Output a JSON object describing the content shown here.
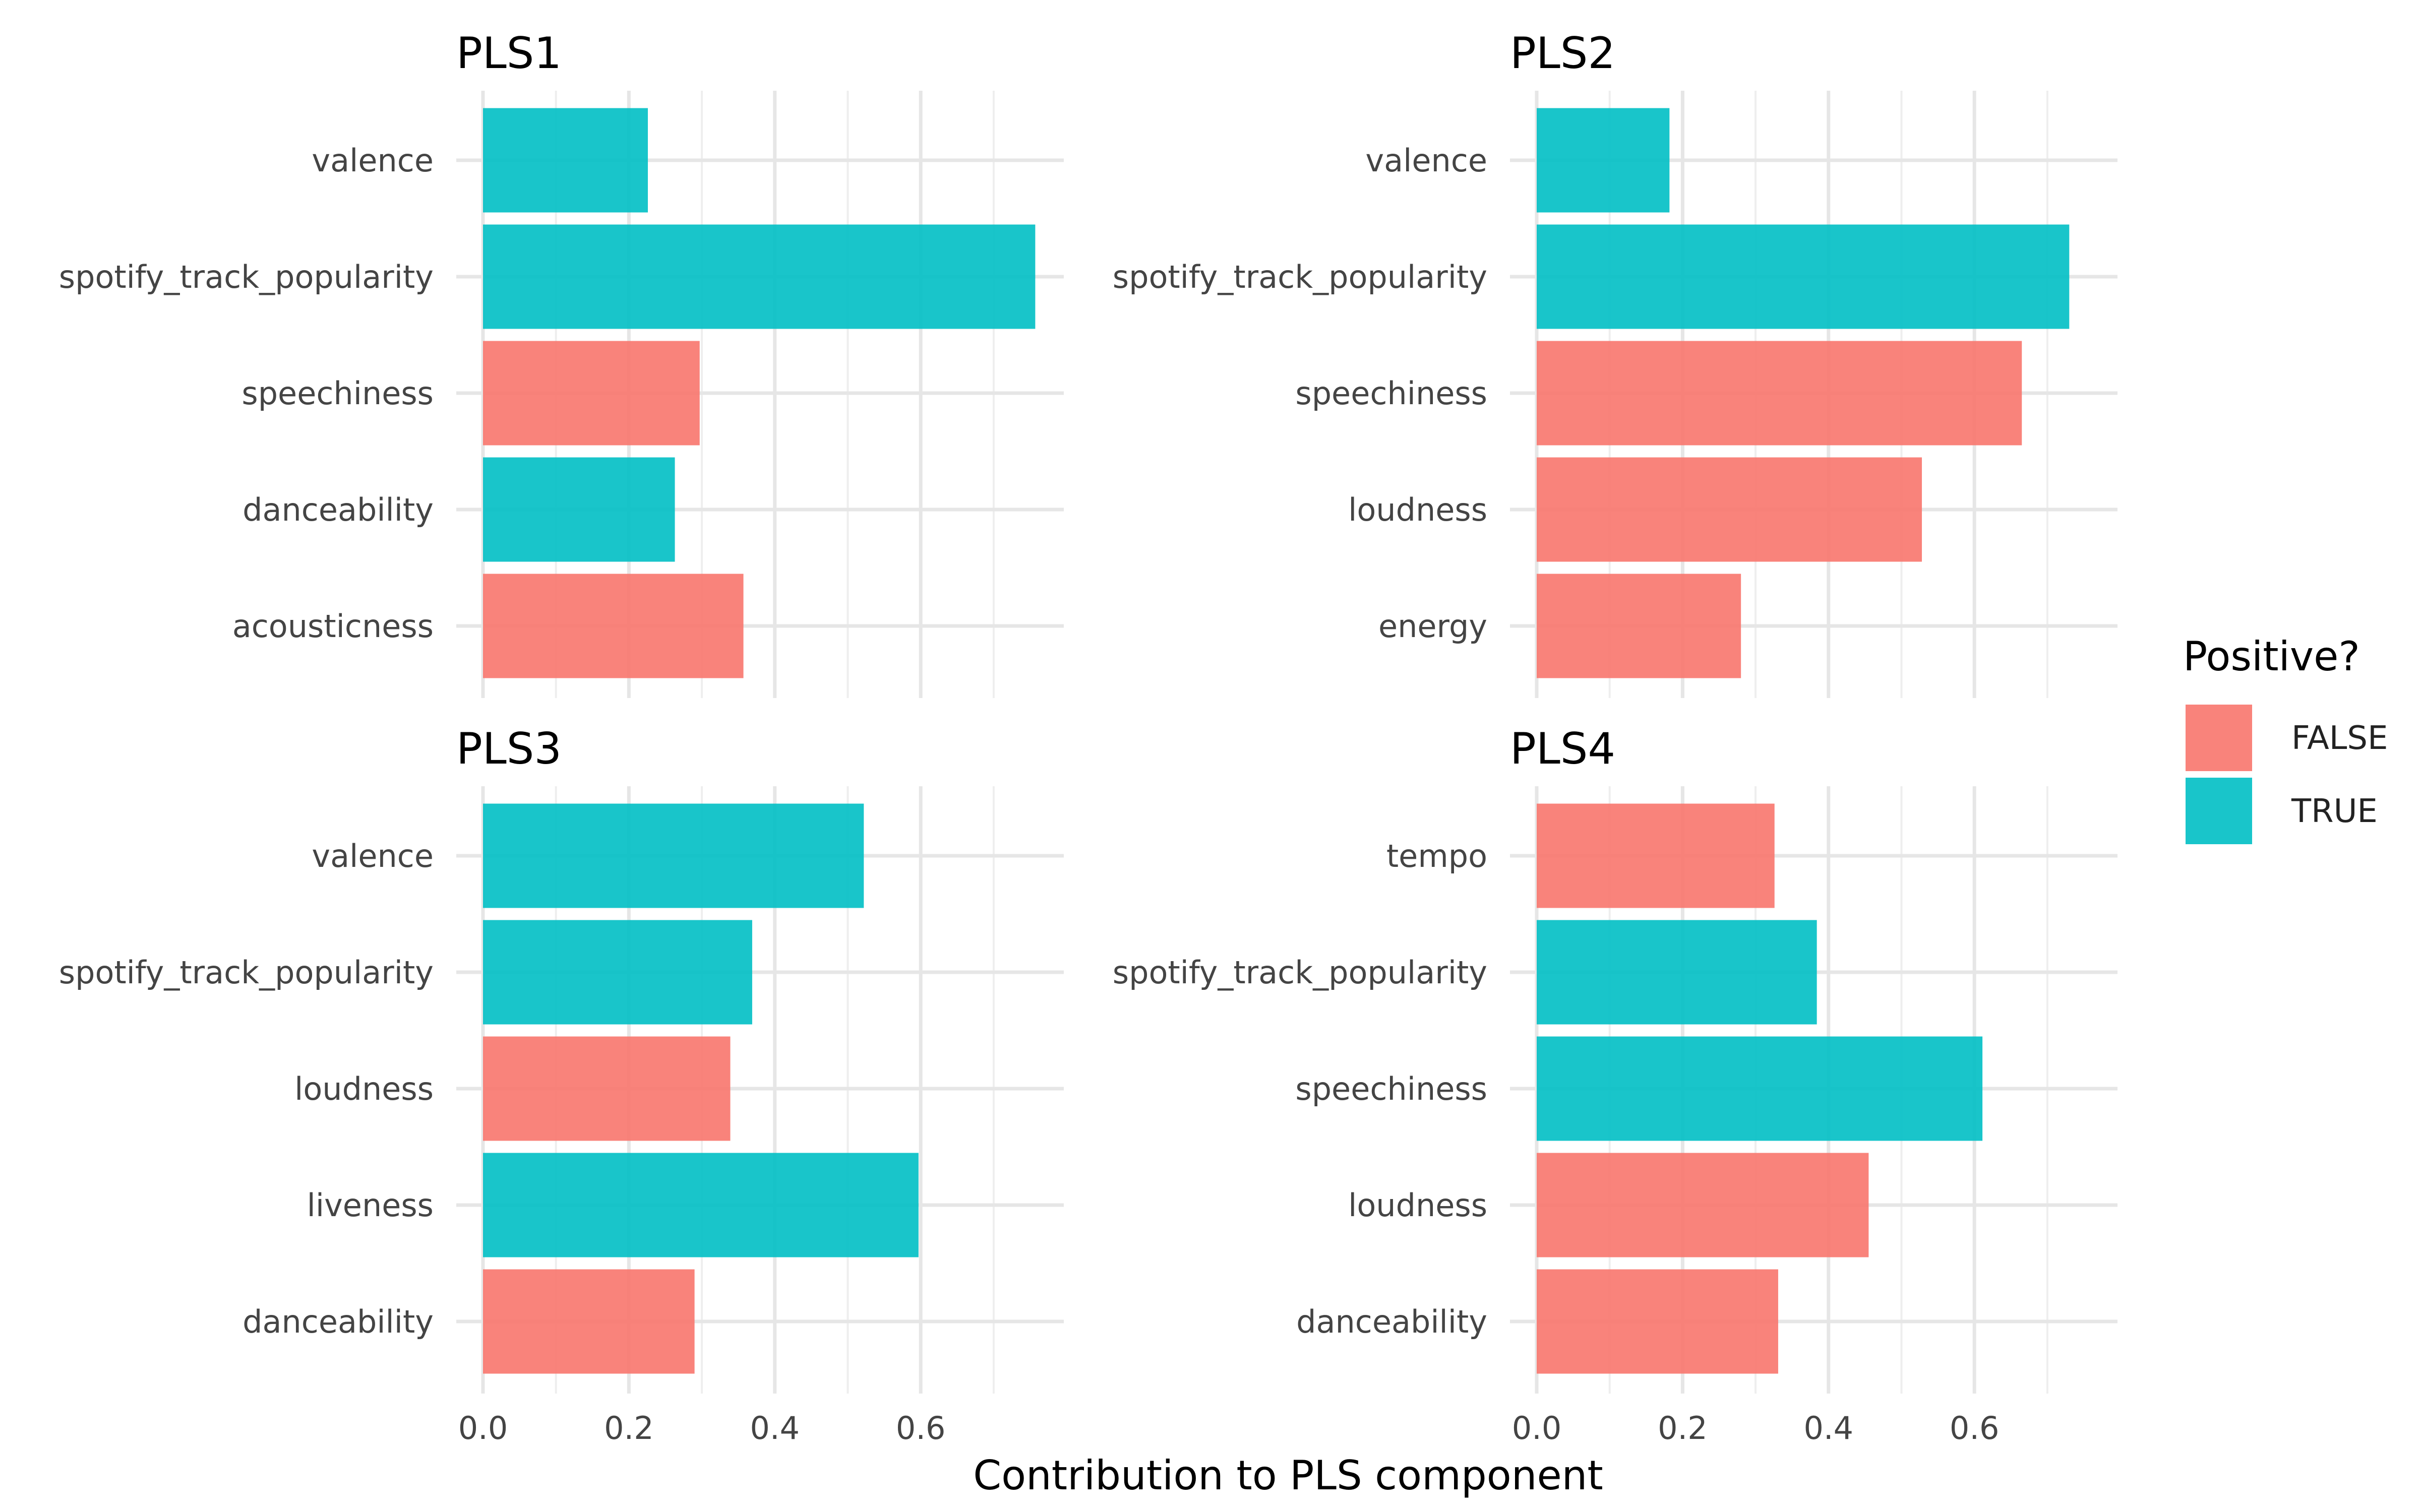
{
  "chart_data": {
    "type": "bar",
    "orientation": "horizontal",
    "xlabel": "Contribution to PLS component",
    "xlim": [
      0,
      0.8
    ],
    "x_ticks": [
      "0.0",
      "0.2",
      "0.4",
      "0.6"
    ],
    "x_tick_values": [
      0,
      0.2,
      0.4,
      0.6
    ],
    "grid": true,
    "legend": {
      "title": "Positive?",
      "placement": "right",
      "entries": [
        {
          "label": "FALSE",
          "color": "#F8766D"
        },
        {
          "label": "TRUE",
          "color": "#00BFC4"
        }
      ]
    },
    "facets": [
      {
        "title": "PLS1",
        "categories": [
          "valence",
          "spotify_track_popularity",
          "speechiness",
          "danceability",
          "acousticness"
        ],
        "values": [
          0.226,
          0.757,
          0.297,
          0.263,
          0.357
        ],
        "positive": [
          true,
          true,
          false,
          true,
          false
        ]
      },
      {
        "title": "PLS2",
        "categories": [
          "valence",
          "spotify_track_popularity",
          "speechiness",
          "loudness",
          "energy"
        ],
        "values": [
          0.182,
          0.73,
          0.665,
          0.528,
          0.28
        ],
        "positive": [
          true,
          true,
          false,
          false,
          false
        ]
      },
      {
        "title": "PLS3",
        "categories": [
          "valence",
          "spotify_track_popularity",
          "loudness",
          "liveness",
          "danceability"
        ],
        "values": [
          0.522,
          0.369,
          0.339,
          0.597,
          0.29
        ],
        "positive": [
          true,
          true,
          false,
          true,
          false
        ]
      },
      {
        "title": "PLS4",
        "categories": [
          "tempo",
          "spotify_track_popularity",
          "speechiness",
          "loudness",
          "danceability"
        ],
        "values": [
          0.326,
          0.384,
          0.611,
          0.455,
          0.331
        ],
        "positive": [
          false,
          true,
          true,
          false,
          false
        ]
      }
    ]
  }
}
